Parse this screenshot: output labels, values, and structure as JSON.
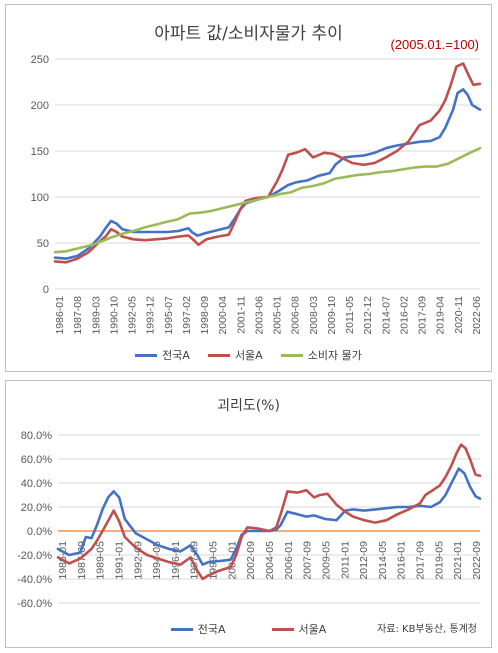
{
  "chart_data": [
    {
      "type": "line",
      "title": "아파트 값/소비자물가 추이",
      "annotation": "(2005.01.=100)",
      "ylim": [
        0,
        250
      ],
      "yticks": [
        "0",
        "50",
        "100",
        "150",
        "200",
        "250"
      ],
      "xlim": [
        1986.0,
        2023.9
      ],
      "x_tick_labels": [
        "1986-01",
        "1987-08",
        "1989-03",
        "1990-10",
        "1992-05",
        "1993-12",
        "1995-07",
        "1997-02",
        "1998-09",
        "2000-04",
        "2001-11",
        "2003-06",
        "2005-01",
        "2006-08",
        "2008-03",
        "2009-10",
        "2011-05",
        "2012-12",
        "2014-07",
        "2016-02",
        "2017-09",
        "2019-04",
        "2020-11",
        "2022-06"
      ],
      "legend_position": "bottom",
      "grid": "horizontal",
      "series": [
        {
          "name": "전국A",
          "color": "#4472c4",
          "points": [
            [
              1986.0,
              34
            ],
            [
              1987.0,
              33
            ],
            [
              1988.0,
              36
            ],
            [
              1989.0,
              44
            ],
            [
              1990.0,
              57
            ],
            [
              1990.5,
              66
            ],
            [
              1991.0,
              74
            ],
            [
              1991.5,
              71
            ],
            [
              1992.0,
              65
            ],
            [
              1993.0,
              62
            ],
            [
              1994.0,
              62
            ],
            [
              1995.0,
              62
            ],
            [
              1996.0,
              62
            ],
            [
              1997.0,
              63
            ],
            [
              1997.9,
              66
            ],
            [
              1998.2,
              62
            ],
            [
              1998.7,
              58
            ],
            [
              1999.5,
              61
            ],
            [
              2000.5,
              64
            ],
            [
              2001.5,
              67
            ],
            [
              2002.0,
              76
            ],
            [
              2002.5,
              86
            ],
            [
              2003.0,
              93
            ],
            [
              2004.0,
              97
            ],
            [
              2005.0,
              100
            ],
            [
              2006.0,
              107
            ],
            [
              2006.8,
              113
            ],
            [
              2007.5,
              116
            ],
            [
              2008.5,
              118
            ],
            [
              2009.5,
              123
            ],
            [
              2010.5,
              126
            ],
            [
              2011.0,
              135
            ],
            [
              2011.8,
              143
            ],
            [
              2012.5,
              144
            ],
            [
              2013.5,
              145
            ],
            [
              2014.5,
              148
            ],
            [
              2015.5,
              153
            ],
            [
              2016.5,
              156
            ],
            [
              2017.5,
              158
            ],
            [
              2018.5,
              160
            ],
            [
              2019.5,
              161
            ],
            [
              2020.3,
              165
            ],
            [
              2020.8,
              175
            ],
            [
              2021.5,
              195
            ],
            [
              2021.9,
              213
            ],
            [
              2022.4,
              217
            ],
            [
              2022.8,
              211
            ],
            [
              2023.2,
              200
            ],
            [
              2023.9,
              195
            ]
          ]
        },
        {
          "name": "서울A",
          "color": "#c0504d",
          "points": [
            [
              1986.0,
              30
            ],
            [
              1987.0,
              29
            ],
            [
              1988.0,
              33
            ],
            [
              1989.0,
              40
            ],
            [
              1990.0,
              52
            ],
            [
              1990.5,
              57
            ],
            [
              1991.0,
              65
            ],
            [
              1991.5,
              62
            ],
            [
              1992.0,
              57
            ],
            [
              1993.0,
              54
            ],
            [
              1994.0,
              53
            ],
            [
              1995.0,
              54
            ],
            [
              1996.0,
              55
            ],
            [
              1997.0,
              57
            ],
            [
              1997.9,
              58
            ],
            [
              1998.3,
              54
            ],
            [
              1998.8,
              48
            ],
            [
              1999.5,
              54
            ],
            [
              2000.5,
              57
            ],
            [
              2001.5,
              59
            ],
            [
              2002.0,
              72
            ],
            [
              2002.5,
              86
            ],
            [
              2003.0,
              96
            ],
            [
              2004.0,
              99
            ],
            [
              2005.0,
              100
            ],
            [
              2005.8,
              117
            ],
            [
              2006.3,
              130
            ],
            [
              2006.8,
              146
            ],
            [
              2007.5,
              148
            ],
            [
              2008.3,
              152
            ],
            [
              2009.0,
              143
            ],
            [
              2010.0,
              148
            ],
            [
              2010.8,
              147
            ],
            [
              2011.5,
              143
            ],
            [
              2012.5,
              137
            ],
            [
              2013.5,
              135
            ],
            [
              2014.5,
              137
            ],
            [
              2015.5,
              143
            ],
            [
              2016.5,
              150
            ],
            [
              2017.5,
              160
            ],
            [
              2018.5,
              178
            ],
            [
              2019.5,
              183
            ],
            [
              2020.3,
              194
            ],
            [
              2020.8,
              205
            ],
            [
              2021.3,
              222
            ],
            [
              2021.8,
              242
            ],
            [
              2022.4,
              245
            ],
            [
              2022.9,
              232
            ],
            [
              2023.3,
              222
            ],
            [
              2023.9,
              223
            ]
          ]
        },
        {
          "name": "소비자 물가",
          "color": "#9bbb59",
          "points": [
            [
              1986.0,
              40
            ],
            [
              1987.0,
              41
            ],
            [
              1988.0,
              44
            ],
            [
              1989.0,
              47
            ],
            [
              1990.0,
              51
            ],
            [
              1991.0,
              56
            ],
            [
              1992.0,
              60
            ],
            [
              1993.0,
              63
            ],
            [
              1994.0,
              67
            ],
            [
              1995.0,
              70
            ],
            [
              1996.0,
              73
            ],
            [
              1997.0,
              76
            ],
            [
              1998.0,
              82
            ],
            [
              1999.0,
              83
            ],
            [
              2000.0,
              85
            ],
            [
              2001.0,
              88
            ],
            [
              2002.0,
              91
            ],
            [
              2003.0,
              94
            ],
            [
              2004.0,
              97
            ],
            [
              2005.0,
              100
            ],
            [
              2006.0,
              103
            ],
            [
              2007.0,
              105
            ],
            [
              2008.0,
              110
            ],
            [
              2009.0,
              112
            ],
            [
              2010.0,
              115
            ],
            [
              2011.0,
              120
            ],
            [
              2012.0,
              122
            ],
            [
              2013.0,
              124
            ],
            [
              2014.0,
              125
            ],
            [
              2015.0,
              127
            ],
            [
              2016.0,
              128
            ],
            [
              2017.0,
              130
            ],
            [
              2018.0,
              132
            ],
            [
              2019.0,
              133
            ],
            [
              2020.0,
              133
            ],
            [
              2021.0,
              136
            ],
            [
              2022.0,
              142
            ],
            [
              2023.0,
              148
            ],
            [
              2023.9,
              153
            ]
          ]
        }
      ]
    },
    {
      "type": "line",
      "title": "괴리도(%)",
      "ylim": [
        -60,
        80
      ],
      "yticks": [
        "80.0%",
        "60.0%",
        "40.0%",
        "20.0%",
        "0.0%",
        "-20.0%",
        "-40.0%",
        "-60.0%"
      ],
      "xlim": [
        1986.0,
        2023.9
      ],
      "x_tick_labels": [
        "1986-01",
        "1987-09",
        "1989-05",
        "1991-01",
        "1992-09",
        "1994-05",
        "1996-01",
        "1997-09",
        "1999-05",
        "2001-01",
        "2002-09",
        "2004-05",
        "2006-01",
        "2007-09",
        "2009-05",
        "2011-01",
        "2012-09",
        "2014-05",
        "2016-01",
        "2017-09",
        "2019-05",
        "2021-01",
        "2022-09"
      ],
      "legend_position": "bottom",
      "grid": "horizontal",
      "zero_line_color": "#ed7d31",
      "series": [
        {
          "name": "전국A",
          "color": "#4472c4",
          "points": [
            [
              1986.0,
              -15
            ],
            [
              1987.0,
              -20
            ],
            [
              1988.0,
              -18
            ],
            [
              1988.5,
              -5
            ],
            [
              1989.0,
              -6
            ],
            [
              1989.5,
              5
            ],
            [
              1990.0,
              18
            ],
            [
              1990.5,
              28
            ],
            [
              1991.0,
              33
            ],
            [
              1991.5,
              28
            ],
            [
              1992.0,
              10
            ],
            [
              1993.0,
              -2
            ],
            [
              1994.0,
              -7
            ],
            [
              1995.0,
              -12
            ],
            [
              1996.0,
              -15
            ],
            [
              1997.0,
              -17
            ],
            [
              1997.9,
              -12
            ],
            [
              1998.5,
              -20
            ],
            [
              1999.0,
              -28
            ],
            [
              1999.5,
              -26
            ],
            [
              2000.5,
              -25
            ],
            [
              2001.5,
              -24
            ],
            [
              2002.0,
              -15
            ],
            [
              2002.5,
              -3
            ],
            [
              2003.0,
              0
            ],
            [
              2004.0,
              0
            ],
            [
              2005.0,
              0
            ],
            [
              2005.6,
              1
            ],
            [
              2006.0,
              5
            ],
            [
              2006.6,
              16
            ],
            [
              2007.5,
              14
            ],
            [
              2008.3,
              12
            ],
            [
              2009.0,
              13
            ],
            [
              2010.0,
              10
            ],
            [
              2011.0,
              9
            ],
            [
              2011.8,
              17
            ],
            [
              2012.5,
              18
            ],
            [
              2013.5,
              17
            ],
            [
              2014.5,
              18
            ],
            [
              2015.5,
              19
            ],
            [
              2016.5,
              20
            ],
            [
              2017.5,
              20
            ],
            [
              2018.5,
              21
            ],
            [
              2019.5,
              20
            ],
            [
              2020.3,
              24
            ],
            [
              2020.8,
              30
            ],
            [
              2021.5,
              43
            ],
            [
              2022.0,
              52
            ],
            [
              2022.5,
              48
            ],
            [
              2023.0,
              37
            ],
            [
              2023.5,
              29
            ],
            [
              2023.9,
              27
            ]
          ]
        },
        {
          "name": "서울A",
          "color": "#c0504d",
          "points": [
            [
              1986.0,
              -22
            ],
            [
              1987.0,
              -27
            ],
            [
              1988.0,
              -23
            ],
            [
              1989.0,
              -15
            ],
            [
              1989.5,
              -8
            ],
            [
              1990.0,
              0
            ],
            [
              1990.6,
              10
            ],
            [
              1991.0,
              17
            ],
            [
              1991.5,
              8
            ],
            [
              1992.0,
              -5
            ],
            [
              1993.0,
              -14
            ],
            [
              1994.0,
              -20
            ],
            [
              1995.0,
              -23
            ],
            [
              1996.0,
              -26
            ],
            [
              1997.0,
              -28
            ],
            [
              1997.9,
              -22
            ],
            [
              1998.5,
              -33
            ],
            [
              1999.0,
              -40
            ],
            [
              1999.5,
              -37
            ],
            [
              2000.5,
              -33
            ],
            [
              2001.5,
              -30
            ],
            [
              2002.0,
              -20
            ],
            [
              2002.5,
              -5
            ],
            [
              2003.0,
              3
            ],
            [
              2004.0,
              2
            ],
            [
              2005.0,
              0
            ],
            [
              2005.6,
              3
            ],
            [
              2006.0,
              14
            ],
            [
              2006.6,
              33
            ],
            [
              2007.5,
              32
            ],
            [
              2008.3,
              34
            ],
            [
              2009.0,
              28
            ],
            [
              2009.5,
              30
            ],
            [
              2010.2,
              31
            ],
            [
              2011.0,
              22
            ],
            [
              2011.8,
              16
            ],
            [
              2012.5,
              12
            ],
            [
              2013.5,
              9
            ],
            [
              2014.5,
              7
            ],
            [
              2015.5,
              9
            ],
            [
              2016.5,
              14
            ],
            [
              2017.5,
              18
            ],
            [
              2018.5,
              23
            ],
            [
              2019.0,
              30
            ],
            [
              2019.5,
              33
            ],
            [
              2020.3,
              38
            ],
            [
              2020.8,
              45
            ],
            [
              2021.3,
              54
            ],
            [
              2021.8,
              65
            ],
            [
              2022.2,
              72
            ],
            [
              2022.6,
              69
            ],
            [
              2023.0,
              60
            ],
            [
              2023.5,
              47
            ],
            [
              2023.9,
              46
            ]
          ]
        }
      ]
    }
  ],
  "source_text": "자료: KB부동산, 통계청"
}
